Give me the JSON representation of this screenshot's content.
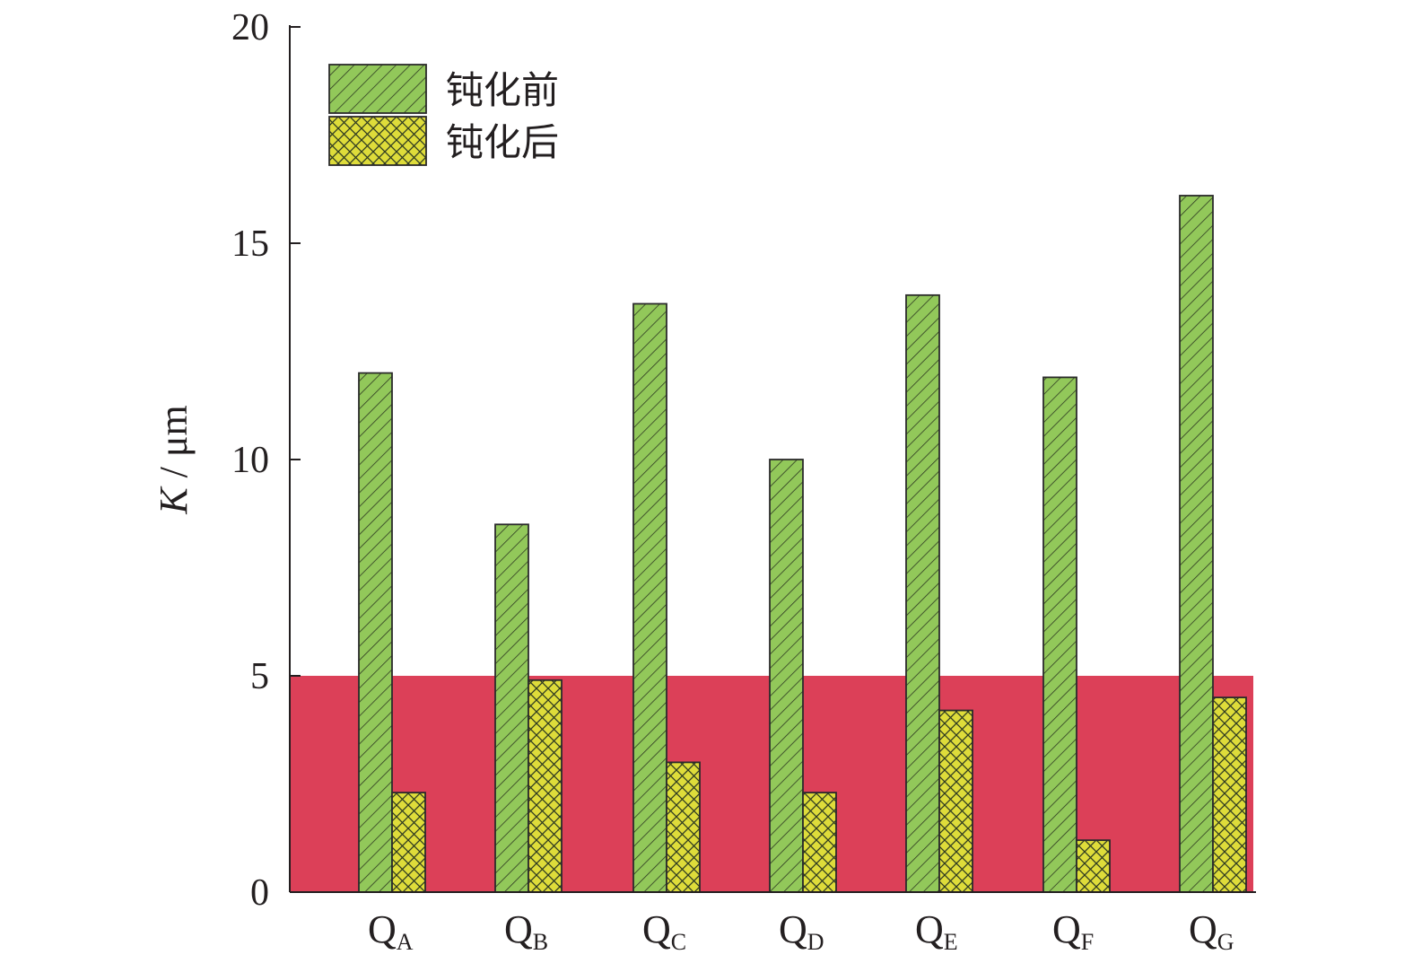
{
  "chart_data": {
    "type": "bar",
    "title": "",
    "xlabel": "",
    "ylabel": {
      "var": "K",
      "sep": " / ",
      "unit": "μm"
    },
    "ylim": [
      0,
      20
    ],
    "yticks": [
      0,
      5,
      10,
      15,
      20
    ],
    "categories": [
      {
        "main": "Q",
        "sub": "A"
      },
      {
        "main": "Q",
        "sub": "B"
      },
      {
        "main": "Q",
        "sub": "C"
      },
      {
        "main": "Q",
        "sub": "D"
      },
      {
        "main": "Q",
        "sub": "E"
      },
      {
        "main": "Q",
        "sub": "F"
      },
      {
        "main": "Q",
        "sub": "G"
      }
    ],
    "series": [
      {
        "name": "钝化前",
        "values": [
          12.0,
          8.5,
          13.6,
          10.0,
          13.8,
          11.9,
          16.1
        ],
        "color": "#92c85a",
        "pattern": "diagonal-hatch"
      },
      {
        "name": "钝化后",
        "values": [
          2.3,
          4.9,
          3.0,
          2.3,
          4.2,
          1.2,
          4.5
        ],
        "color": "#dedc3a",
        "pattern": "cross-hatch"
      }
    ],
    "threshold_band": {
      "from": 0,
      "to": 5,
      "color": "#dc4058"
    },
    "legend_position": "top-left",
    "grid": false
  }
}
